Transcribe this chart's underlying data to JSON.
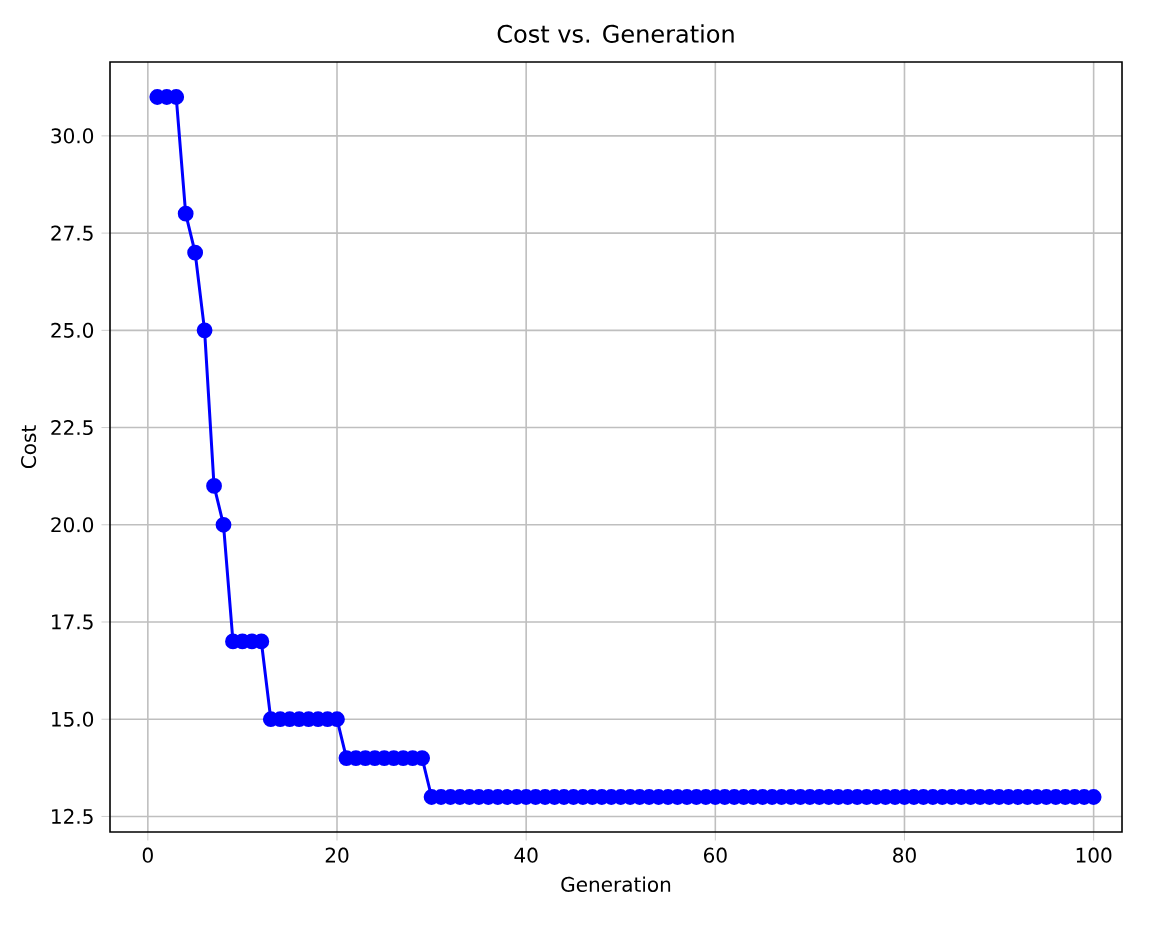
{
  "chart_data": {
    "type": "line",
    "title": "Cost vs. Generation",
    "xlabel": "Generation",
    "ylabel": "Cost",
    "x": [
      1,
      2,
      3,
      4,
      5,
      6,
      7,
      8,
      9,
      10,
      11,
      12,
      13,
      14,
      15,
      16,
      17,
      18,
      19,
      20,
      21,
      22,
      23,
      24,
      25,
      26,
      27,
      28,
      29,
      30,
      31,
      32,
      33,
      34,
      35,
      36,
      37,
      38,
      39,
      40,
      41,
      42,
      43,
      44,
      45,
      46,
      47,
      48,
      49,
      50,
      51,
      52,
      53,
      54,
      55,
      56,
      57,
      58,
      59,
      60,
      61,
      62,
      63,
      64,
      65,
      66,
      67,
      68,
      69,
      70,
      71,
      72,
      73,
      74,
      75,
      76,
      77,
      78,
      79,
      80,
      81,
      82,
      83,
      84,
      85,
      86,
      87,
      88,
      89,
      90,
      91,
      92,
      93,
      94,
      95,
      96,
      97,
      98,
      99,
      100
    ],
    "series": [
      {
        "color": "#0000ff",
        "values": [
          31,
          31,
          31,
          28,
          27,
          25,
          21,
          20,
          17,
          17,
          17,
          17,
          15,
          15,
          15,
          15,
          15,
          15,
          15,
          15,
          14,
          14,
          14,
          14,
          14,
          14,
          14,
          14,
          14,
          13,
          13,
          13,
          13,
          13,
          13,
          13,
          13,
          13,
          13,
          13,
          13,
          13,
          13,
          13,
          13,
          13,
          13,
          13,
          13,
          13,
          13,
          13,
          13,
          13,
          13,
          13,
          13,
          13,
          13,
          13,
          13,
          13,
          13,
          13,
          13,
          13,
          13,
          13,
          13,
          13,
          13,
          13,
          13,
          13,
          13,
          13,
          13,
          13,
          13,
          13,
          13,
          13,
          13,
          13,
          13,
          13,
          13,
          13,
          13,
          13,
          13,
          13,
          13,
          13,
          13,
          13,
          13,
          13,
          13,
          13
        ]
      }
    ],
    "xlim": [
      -4,
      103
    ],
    "ylim": [
      12.1,
      31.9
    ],
    "xticks": [
      0,
      20,
      40,
      60,
      80,
      100
    ],
    "yticks": [
      12.5,
      {
        "value": 15,
        "label": "15.0"
      },
      17.5,
      {
        "value": 20,
        "label": "20.0"
      },
      22.5,
      {
        "value": 25,
        "label": "25.0"
      },
      27.5,
      {
        "value": 30,
        "label": "30.0"
      }
    ],
    "grid": true,
    "marker": "circle",
    "line_style": "solid"
  }
}
